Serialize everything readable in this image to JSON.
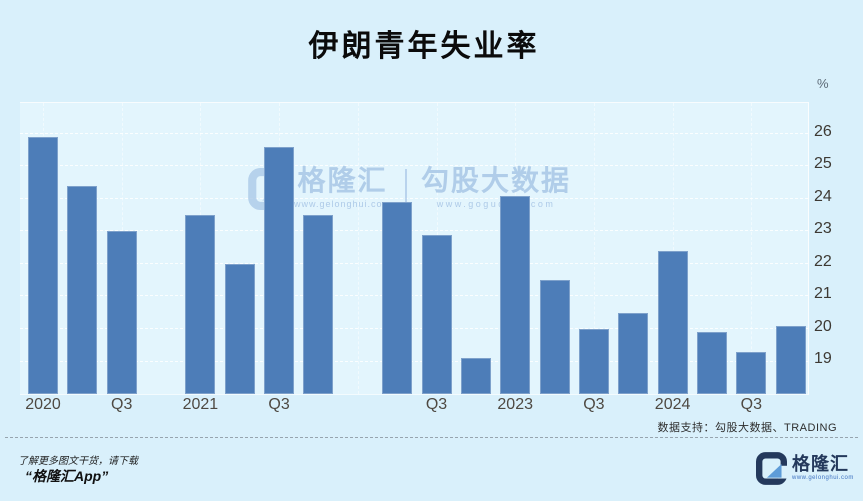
{
  "page": {
    "unit_label": "%",
    "source_note": "数据支持：勾股大数据、TRADING",
    "watermark": {
      "brand_left": "格隆汇",
      "brand_left_url": "www.gelonghui.com",
      "separator": "|",
      "brand_right": "勾股大数据",
      "brand_right_url": "www.gogudata.com"
    },
    "footer": {
      "promo_line1": "了解更多图文干货，请下载",
      "promo_line2": "“格隆汇App”",
      "logo_text": "格隆汇",
      "logo_url": "www.gelonghui.com"
    },
    "colors": {
      "background": "#d9f0fb",
      "plot_background": "#e3f5fd",
      "bar": "#4d7db8",
      "axis_text": "#4e4942",
      "logo_navy": "#24395c",
      "logo_blue": "#5e9cd8",
      "watermark": "#a7c5e5"
    }
  },
  "chart_data": {
    "type": "bar",
    "title": "伊朗青年失业率",
    "xlabel": "",
    "ylabel": "%",
    "ylim": [
      18,
      26.95
    ],
    "yticks": [
      19,
      20,
      21,
      22,
      23,
      24,
      25,
      26
    ],
    "grid": true,
    "legend": false,
    "y_axis_side": "right",
    "series_name": "伊朗青年失业率",
    "points": [
      {
        "quarter": "2020Q1",
        "axis_label": "2020",
        "value": 25.9
      },
      {
        "quarter": "2020Q2",
        "axis_label": "",
        "value": 24.4
      },
      {
        "quarter": "2020Q3",
        "axis_label": "Q3",
        "value": 23.0
      },
      {
        "quarter": "2020Q4",
        "axis_label": "",
        "value": null
      },
      {
        "quarter": "2021Q1",
        "axis_label": "2021",
        "value": 23.5
      },
      {
        "quarter": "2021Q2",
        "axis_label": "",
        "value": 22.0
      },
      {
        "quarter": "2021Q3",
        "axis_label": "Q3",
        "value": 25.6
      },
      {
        "quarter": "2021Q4",
        "axis_label": "",
        "value": 23.5
      },
      {
        "quarter": "2022Q1",
        "axis_label": "",
        "value": null
      },
      {
        "quarter": "2022Q2",
        "axis_label": "",
        "value": 23.9
      },
      {
        "quarter": "2022Q3",
        "axis_label": "Q3",
        "value": 22.9
      },
      {
        "quarter": "2022Q4",
        "axis_label": "",
        "value": 19.1
      },
      {
        "quarter": "2023Q1",
        "axis_label": "2023",
        "value": 24.1
      },
      {
        "quarter": "2023Q2",
        "axis_label": "",
        "value": 21.5
      },
      {
        "quarter": "2023Q3",
        "axis_label": "Q3",
        "value": 20.0
      },
      {
        "quarter": "2023Q4",
        "axis_label": "",
        "value": 20.5
      },
      {
        "quarter": "2024Q1",
        "axis_label": "2024",
        "value": 22.4
      },
      {
        "quarter": "2024Q2",
        "axis_label": "",
        "value": 19.9
      },
      {
        "quarter": "2024Q3",
        "axis_label": "Q3",
        "value": 19.3
      },
      {
        "quarter": "2024Q4",
        "axis_label": "",
        "value": 20.1
      }
    ]
  }
}
